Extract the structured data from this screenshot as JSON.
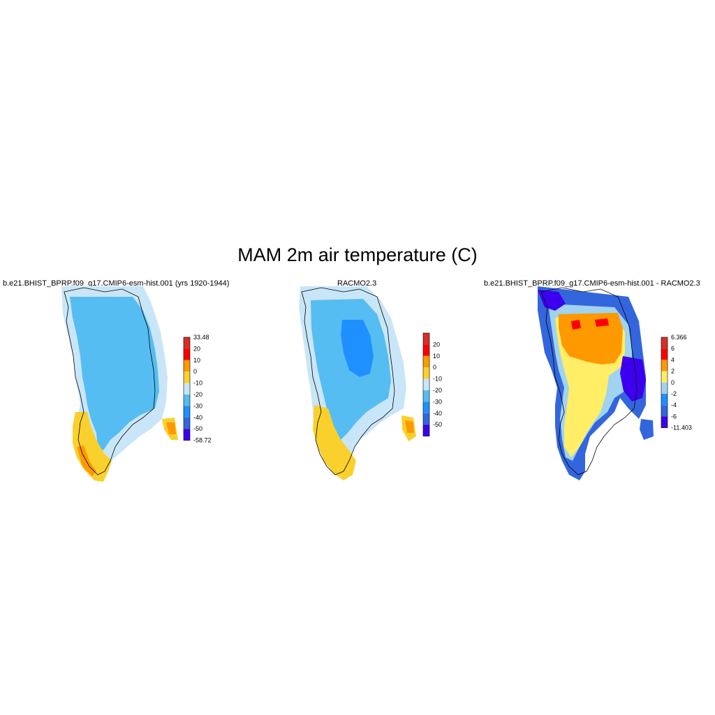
{
  "figure": {
    "title": "MAM 2m air temperature (C)"
  },
  "panels": [
    {
      "id": "model",
      "title": "b.e21.BHIST_BPRP.f09_g17.CMIP6-esm-hist.001 (yrs 1920-1944)",
      "colorbar": {
        "labels": [
          "33.48",
          "20",
          "10",
          "0",
          "-10",
          "-20",
          "-30",
          "-40",
          "-50",
          "-58.72"
        ],
        "colors": [
          "#d62f27",
          "#ff0000",
          "#ff9900",
          "#fad02c",
          "#c9e6f8",
          "#56bdf2",
          "#1e90ff",
          "#3366dd",
          "#3c00ee"
        ]
      }
    },
    {
      "id": "obs",
      "title": "RACMO2.3",
      "colorbar": {
        "labels": [
          "20",
          "10",
          "0",
          "-10",
          "-20",
          "-30",
          "-40",
          "-50"
        ],
        "colors": [
          "#d62f27",
          "#ff0000",
          "#ff9900",
          "#fad02c",
          "#c9e6f8",
          "#56bdf2",
          "#1e90ff",
          "#3366dd",
          "#3c00ee"
        ]
      }
    },
    {
      "id": "diff",
      "title": "b.e21.BHIST_BPRP.f09_g17.CMIP6-esm-hist.001 - RACMO2.3",
      "colorbar": {
        "labels": [
          "6.366",
          "6",
          "4",
          "2",
          "0",
          "-2",
          "-4",
          "-6",
          "-11.403"
        ],
        "colors": [
          "#d62f27",
          "#ff0000",
          "#ff9900",
          "#ffee66",
          "#9fd3f0",
          "#1e90ff",
          "#3366dd",
          "#3c00ee"
        ]
      }
    }
  ]
}
